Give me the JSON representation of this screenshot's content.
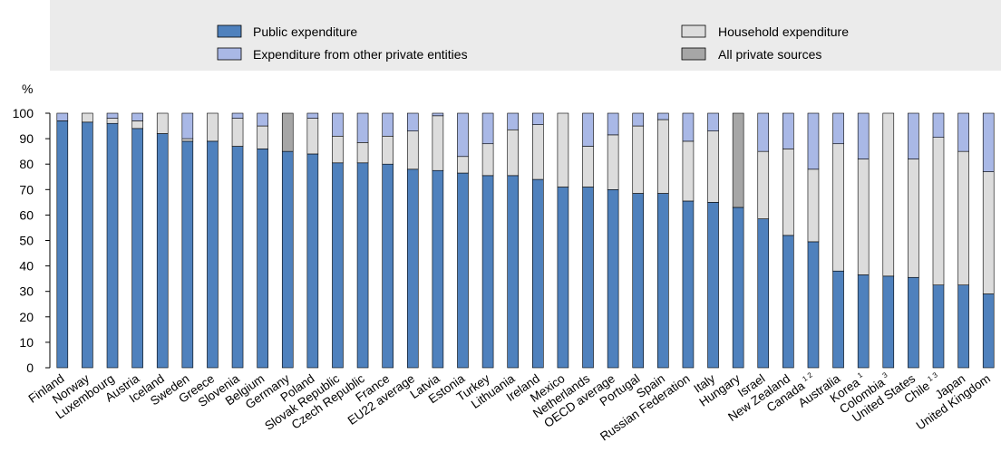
{
  "chart_data": {
    "type": "bar",
    "stacked": true,
    "y_unit_label": "%",
    "ylim": [
      0,
      100
    ],
    "y_ticks": [
      0,
      10,
      20,
      30,
      40,
      50,
      60,
      70,
      80,
      90,
      100
    ],
    "grid": false,
    "legend_position": "top",
    "legend": {
      "public": "Public expenditure",
      "other": "Expenditure from other private entities",
      "household": "Household expenditure",
      "allprivate": "All private sources"
    },
    "colors": {
      "public": "#4f81bd",
      "other": "#a9b8e6",
      "household": "#dcdcdc",
      "allprivate": "#a6a6a6",
      "legend_band": "#ebebeb"
    },
    "categories": [
      "Finland",
      "Norway",
      "Luxembourg",
      "Austria",
      "Iceland",
      "Sweden",
      "Greece",
      "Slovenia",
      "Belgium",
      "Germany",
      "Poland",
      "Slovak Republic",
      "Czech Republic",
      "France",
      "EU22 average",
      "Latvia",
      "Estonia",
      "Turkey",
      "Lithuania",
      "Ireland",
      "Mexico",
      "Netherlands",
      "OECD average",
      "Portugal",
      "Spain",
      "Russian Federation",
      "Italy",
      "Hungary",
      "Israel",
      "New Zealand",
      "Canada",
      "Australia",
      "Korea",
      "Colombia",
      "United States",
      "Chile",
      "Japan",
      "United Kingdom"
    ],
    "category_notes": [
      "",
      "",
      "",
      "",
      "",
      "",
      "",
      "",
      "",
      "",
      "",
      "",
      "",
      "",
      "",
      "",
      "",
      "",
      "",
      "",
      "",
      "",
      "",
      "",
      "",
      "",
      "",
      "",
      "",
      "",
      "1 2",
      "",
      "1",
      "3",
      "",
      "1 3",
      "",
      ""
    ],
    "series": [
      {
        "name": "Public expenditure",
        "key": "public",
        "values": [
          97,
          96.5,
          96,
          94,
          92,
          89,
          89,
          87,
          86,
          85,
          84,
          80.5,
          80.5,
          80,
          78,
          77.5,
          76.5,
          75.5,
          75.5,
          74,
          71,
          71,
          70,
          68.5,
          68.5,
          65.5,
          65,
          63,
          58.5,
          52,
          49.5,
          38,
          36.5,
          36,
          35.5,
          32.5,
          32.5,
          29
        ]
      },
      {
        "name": "Household expenditure",
        "key": "household",
        "values": [
          0,
          3.5,
          2,
          3,
          8,
          1,
          11,
          11,
          9,
          0,
          14,
          10.5,
          8,
          11,
          15,
          21.5,
          6.5,
          12.5,
          18,
          21.5,
          29,
          16,
          21.5,
          26.5,
          29,
          23.5,
          28,
          0,
          26.5,
          34,
          28.5,
          50,
          45.5,
          64,
          46.5,
          58,
          52.5,
          48
        ]
      },
      {
        "name": "Expenditure from other private entities",
        "key": "other",
        "values": [
          3,
          0,
          2,
          3,
          0,
          10,
          0,
          2,
          5,
          0,
          2,
          9,
          11.5,
          9,
          7,
          1,
          17,
          12,
          6.5,
          4.5,
          0,
          13,
          8.5,
          5,
          2.5,
          11,
          7,
          0,
          15,
          14,
          22,
          12,
          18,
          0,
          18,
          9.5,
          15,
          23
        ]
      },
      {
        "name": "All private sources",
        "key": "allprivate",
        "values": [
          0,
          0,
          0,
          0,
          0,
          0,
          0,
          0,
          0,
          15,
          0,
          0,
          0,
          0,
          0,
          0,
          0,
          0,
          0,
          0,
          0,
          0,
          0,
          0,
          0,
          0,
          0,
          37,
          0,
          0,
          0,
          0,
          0,
          0,
          0,
          0,
          0,
          0
        ]
      }
    ]
  }
}
